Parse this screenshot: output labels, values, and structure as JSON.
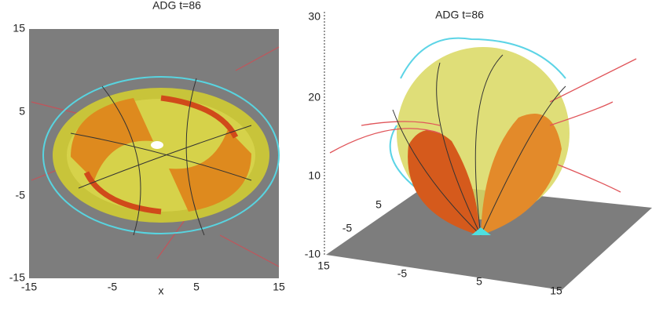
{
  "panels": [
    {
      "title": "ADG t=86",
      "y_ticks": [
        "15",
        "5",
        "-5",
        "-15"
      ],
      "x_ticks": [
        "-15",
        "-5",
        "5",
        "15"
      ],
      "x_label": "x"
    },
    {
      "title": "ADG t=86",
      "z_ticks": [
        "30",
        "20",
        "10",
        "-10"
      ],
      "floor_ticks": [
        "5",
        "-5",
        "15",
        "-5",
        "5",
        "15"
      ]
    }
  ]
}
